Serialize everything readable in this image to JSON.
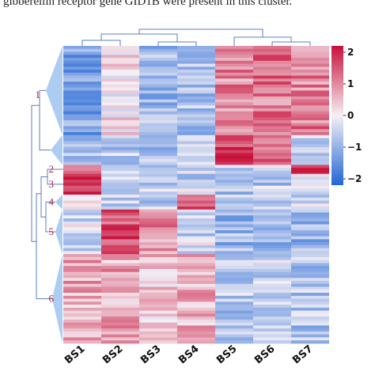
{
  "caption": "gibberellin receptor gene GID1B were present in this cluster.",
  "chart_data": {
    "type": "heatmap",
    "columns": [
      "BS1",
      "BS2",
      "BS3",
      "BS4",
      "BS5",
      "BS6",
      "BS7"
    ],
    "row_clusters": [
      "1",
      "2",
      "3",
      "4",
      "5",
      "6"
    ],
    "colorbar": {
      "ticks": [
        "2",
        "1",
        "0",
        "−1",
        "−2"
      ],
      "tick_values": [
        2,
        1,
        0,
        -1,
        -2
      ],
      "min": -2.2,
      "max": 2.2,
      "colors": {
        "low": "#2166d6",
        "mid": "#f5f0f5",
        "high": "#c8103a"
      }
    },
    "blocks": [
      {
        "cluster": "1",
        "rows": 30,
        "means": [
          -1.2,
          0.1,
          -0.9,
          -0.7,
          1.0,
          1.2,
          1.1
        ]
      },
      {
        "cluster": "1",
        "rows": 10,
        "means": [
          -0.8,
          -0.6,
          -0.8,
          -0.7,
          1.7,
          1.5,
          -0.4
        ]
      },
      {
        "cluster": "2",
        "rows": 3,
        "means": [
          1.0,
          -0.7,
          -0.5,
          -0.3,
          -0.5,
          -0.2,
          1.6
        ]
      },
      {
        "cluster": "3",
        "rows": 7,
        "means": [
          2.0,
          -0.2,
          -0.4,
          -0.5,
          -0.7,
          -0.6,
          -0.4
        ]
      },
      {
        "cluster": "4",
        "rows": 5,
        "means": [
          0.3,
          -0.5,
          -0.6,
          1.7,
          -0.4,
          -0.5,
          -0.3
        ]
      },
      {
        "cluster": "5",
        "rows": 15,
        "means": [
          -0.3,
          1.6,
          1.0,
          -0.4,
          -0.9,
          -0.8,
          -0.9
        ]
      },
      {
        "cluster": "6",
        "rows": 30,
        "means": [
          0.7,
          0.7,
          0.4,
          0.6,
          -0.6,
          -0.5,
          -0.7
        ]
      }
    ],
    "title": "",
    "xlabel": "",
    "ylabel": ""
  }
}
